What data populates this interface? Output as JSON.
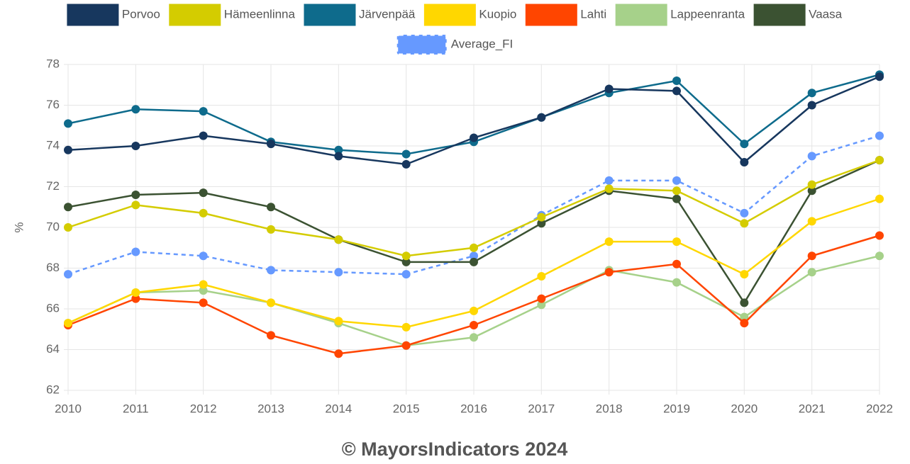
{
  "chart_data": {
    "type": "line",
    "y_label": "%",
    "footer": "© MayorsIndicators 2024",
    "categories": [
      "2010",
      "2011",
      "2012",
      "2013",
      "2014",
      "2015",
      "2016",
      "2017",
      "2018",
      "2019",
      "2020",
      "2021",
      "2022"
    ],
    "ylim": [
      62,
      78
    ],
    "yticks": [
      62,
      64,
      66,
      68,
      70,
      72,
      74,
      76,
      78
    ],
    "grid": true,
    "legend": "top",
    "series": [
      {
        "name": "Porvoo",
        "color": "#17375e",
        "values": [
          73.8,
          74.0,
          74.5,
          74.1,
          73.5,
          73.1,
          74.4,
          75.4,
          76.8,
          76.7,
          73.2,
          76.0,
          77.4
        ]
      },
      {
        "name": "Hämeenlinna",
        "color": "#d4cc00",
        "values": [
          70.0,
          71.1,
          70.7,
          69.9,
          69.4,
          68.6,
          69.0,
          70.5,
          71.9,
          71.8,
          70.2,
          72.1,
          73.3
        ]
      },
      {
        "name": "Järvenpää",
        "color": "#0e6b8c",
        "values": [
          75.1,
          75.8,
          75.7,
          74.2,
          73.8,
          73.6,
          74.2,
          75.4,
          76.6,
          77.2,
          74.1,
          76.6,
          77.5
        ]
      },
      {
        "name": "Kuopio",
        "color": "#ffd700",
        "values": [
          65.3,
          66.8,
          67.2,
          66.3,
          65.4,
          65.1,
          65.9,
          67.6,
          69.3,
          69.3,
          67.7,
          70.3,
          71.4
        ]
      },
      {
        "name": "Lahti",
        "color": "#ff4500",
        "values": [
          65.2,
          66.5,
          66.3,
          64.7,
          63.8,
          64.2,
          65.2,
          66.5,
          67.8,
          68.2,
          65.3,
          68.6,
          69.6
        ]
      },
      {
        "name": "Lappeenranta",
        "color": "#a6d18a",
        "values": [
          65.3,
          66.8,
          66.9,
          66.3,
          65.3,
          64.2,
          64.6,
          66.2,
          67.9,
          67.3,
          65.6,
          67.8,
          68.6
        ]
      },
      {
        "name": "Vaasa",
        "color": "#3b5232",
        "values": [
          71.0,
          71.6,
          71.7,
          71.0,
          69.4,
          68.3,
          68.3,
          70.2,
          71.8,
          71.4,
          66.3,
          71.8,
          73.3
        ]
      },
      {
        "name": "Average_FI",
        "color": "#6699ff",
        "dashed": true,
        "values": [
          67.7,
          68.8,
          68.6,
          67.9,
          67.8,
          67.7,
          68.6,
          70.6,
          72.3,
          72.3,
          70.7,
          73.5,
          74.5
        ]
      }
    ]
  }
}
